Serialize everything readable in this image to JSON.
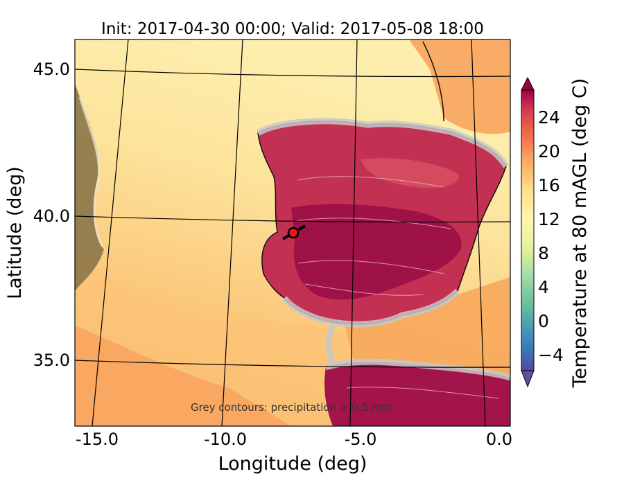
{
  "title": "Init: 2017-04-30 00:00; Valid: 2017-05-08 18:00",
  "xlabel": "Longitude (deg)",
  "ylabel": "Latitude (deg)",
  "x_ticks": [
    "-15.0",
    "-10.0",
    "-5.0",
    "0.0"
  ],
  "y_ticks": [
    "45.0",
    "40.0",
    "35.0"
  ],
  "colorbar": {
    "label": "Temperature at 80 mAGL (deg C)",
    "ticks": [
      "24",
      "20",
      "16",
      "12",
      "8",
      "4",
      "0",
      "−4"
    ]
  },
  "annotation": "Grey contours: precipitation > 0.5 mm",
  "marker": {
    "lon": -7.6,
    "lat": 39.3,
    "color": "#e31a1c"
  },
  "colors": {
    "land_hot": "#a3144a",
    "land_warm": "#c93657",
    "sea_warm": "#f6a15c",
    "sea_mild": "#fcd98c",
    "sea_cool": "#fdeaa0",
    "precip_contour": "#c8c8c8"
  },
  "chart_data": {
    "type": "heatmap",
    "variable": "Temperature at 80 mAGL",
    "units": "deg C",
    "colorbar_range": [
      -6,
      28
    ],
    "x_range": [
      -16,
      0.2
    ],
    "y_range": [
      33,
      46
    ]
  }
}
